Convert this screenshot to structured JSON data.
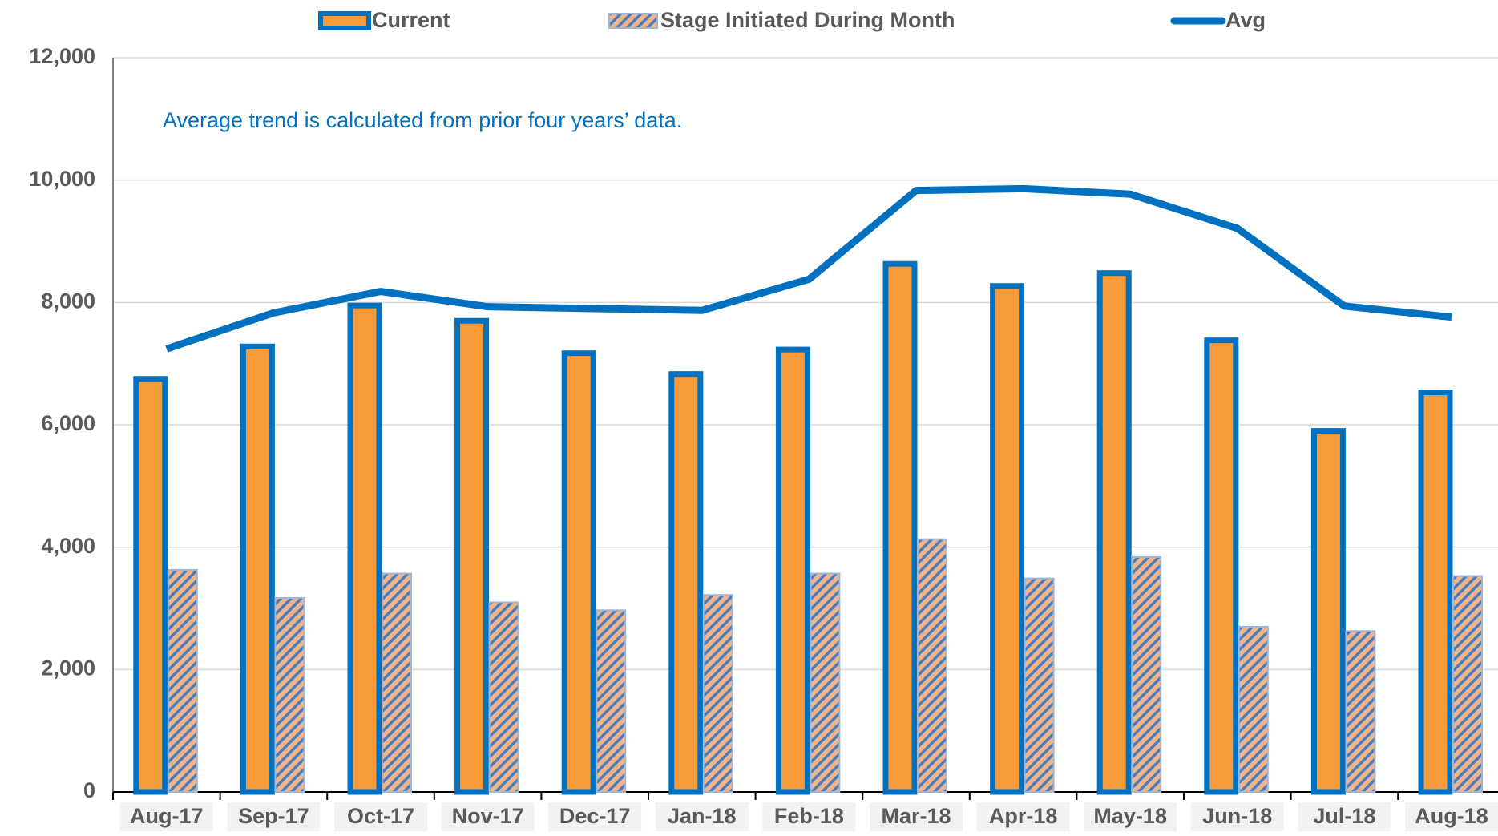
{
  "chart_data": {
    "type": "bar",
    "annotation": "Average trend is calculated from prior four years’ data.",
    "categories": [
      "Aug-17",
      "Sep-17",
      "Oct-17",
      "Nov-17",
      "Dec-17",
      "Jan-18",
      "Feb-18",
      "Mar-18",
      "Apr-18",
      "May-18",
      "Jun-18",
      "Jul-18",
      "Aug-18"
    ],
    "series": [
      {
        "name": "Current",
        "type": "bar",
        "color": "#f79a3a",
        "values": [
          6750,
          7280,
          7950,
          7700,
          7170,
          6830,
          7230,
          8630,
          8270,
          8480,
          7380,
          5900,
          6530
        ]
      },
      {
        "name": "Stage Initiated During Month",
        "type": "bar",
        "color": "#f2b48a",
        "hatch": true,
        "values": [
          3630,
          3170,
          3570,
          3100,
          2970,
          3220,
          3570,
          4130,
          3490,
          3840,
          2700,
          2630,
          3530
        ]
      },
      {
        "name": "Avg",
        "type": "line",
        "color": "#0070c0",
        "values": [
          7240,
          7830,
          8180,
          7930,
          7900,
          7870,
          8380,
          9830,
          9860,
          9770,
          9210,
          7940,
          7760
        ]
      }
    ],
    "ylim": [
      0,
      12000
    ],
    "yticks": [
      0,
      {
        "value": 2000,
        "label": "2,000"
      },
      {
        "value": 4000,
        "label": "4,000"
      },
      {
        "value": 6000,
        "label": "6,000"
      },
      {
        "value": 8000,
        "label": "8,000"
      },
      {
        "value": 10000,
        "label": "10,000"
      },
      {
        "value": 12000,
        "label": "12,000"
      }
    ],
    "grid": true,
    "legend": "top"
  }
}
